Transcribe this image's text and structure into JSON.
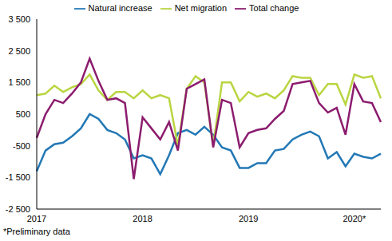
{
  "chart_data": {
    "type": "line",
    "categories": [
      "2017",
      null,
      null,
      null,
      null,
      null,
      null,
      null,
      null,
      null,
      null,
      null,
      "2018",
      null,
      null,
      null,
      null,
      null,
      null,
      null,
      null,
      null,
      null,
      null,
      "2019",
      null,
      null,
      null,
      null,
      null,
      null,
      null,
      null,
      null,
      null,
      null,
      "2020*",
      null,
      null,
      null
    ],
    "series": [
      {
        "name": "Natural increase",
        "color": "#2278b5",
        "values": [
          -1300,
          -650,
          -450,
          -400,
          -200,
          50,
          500,
          350,
          0,
          -100,
          -300,
          -900,
          -800,
          -900,
          -1400,
          -800,
          -100,
          0,
          -150,
          100,
          -150,
          -550,
          -650,
          -1200,
          -1200,
          -1050,
          -1050,
          -650,
          -600,
          -300,
          -150,
          -50,
          -200,
          -900,
          -700,
          -1150,
          -750,
          -850,
          -900,
          -750
        ]
      },
      {
        "name": "Net migration",
        "color": "#b9d541",
        "values": [
          1100,
          1150,
          1400,
          1200,
          1350,
          1450,
          1750,
          1250,
          950,
          1200,
          1200,
          1000,
          1250,
          1000,
          1100,
          1000,
          -500,
          1300,
          1700,
          1500,
          -500,
          1500,
          1500,
          900,
          1200,
          1050,
          1150,
          1000,
          1250,
          1700,
          1650,
          1650,
          1100,
          1450,
          1450,
          800,
          1750,
          1650,
          1700,
          1000
        ]
      },
      {
        "name": "Total change",
        "color": "#8c1c6e",
        "values": [
          -250,
          500,
          950,
          850,
          1150,
          1500,
          2250,
          1550,
          950,
          1000,
          850,
          -1550,
          400,
          50,
          -300,
          250,
          -650,
          1300,
          1450,
          1600,
          -550,
          950,
          850,
          -550,
          -100,
          0,
          50,
          350,
          600,
          1450,
          1500,
          1550,
          850,
          550,
          700,
          -150,
          1450,
          900,
          850,
          250
        ]
      }
    ],
    "ylim": [
      -2500,
      3500
    ],
    "yticks": [
      {
        "value": -2500,
        "label": "-2 500"
      },
      {
        "value": -1500,
        "label": "-1 500"
      },
      -500,
      500,
      {
        "value": 1500,
        "label": "1 500"
      },
      {
        "value": 2500,
        "label": "2 500"
      },
      {
        "value": 3500,
        "label": "3 500"
      }
    ],
    "grid": false,
    "legend": "top",
    "annotations": [
      "*Preliminary data"
    ]
  }
}
